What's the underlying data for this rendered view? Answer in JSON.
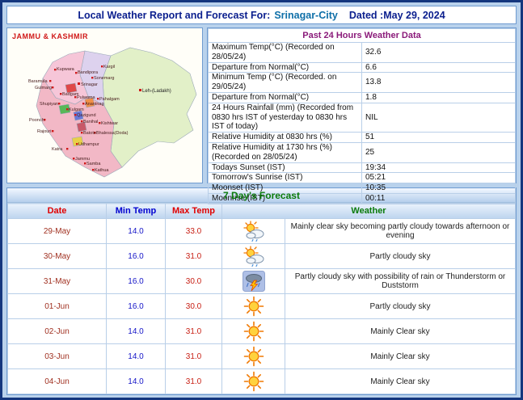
{
  "header": {
    "title": "Local Weather Report and Forecast For:",
    "city": "Srinagar-City",
    "dated": "Dated :May 29, 2024"
  },
  "map": {
    "region_title": "JAMMU & KASHMIR",
    "labels": [
      "Kupwara",
      "Bandipora",
      "Sonemarg",
      "Kargil",
      "Leh-(Ladakh)",
      "Baramula",
      "Srinagar",
      "Gulmarg",
      "Badgam",
      "Pulwama",
      "Shupiyan",
      "Kulgam",
      "Anantnag",
      "Pahalgam",
      "Qazigund",
      "Banihal",
      "Kishtwar",
      "Bhalessa(Doda)",
      "Batote",
      "Udhampur",
      "Katra",
      "Rajouri",
      "Poonch",
      "Jammu",
      "Samba",
      "Kathua"
    ]
  },
  "past24": {
    "title": "Past 24 Hours Weather Data",
    "rows": [
      {
        "label": "Maximum Temp(°C) (Recorded on 28/05/24)",
        "value": "32.6"
      },
      {
        "label": "Departure from Normal(°C)",
        "value": "6.6"
      },
      {
        "label": "Minimum Temp (°C) (Recorded. on 29/05/24)",
        "value": "13.8"
      },
      {
        "label": "Departure from Normal(°C)",
        "value": "1.8"
      },
      {
        "label": "24 Hours Rainfall (mm) (Recorded from 0830 hrs IST of yesterday to 0830 hrs IST of today)",
        "value": "NIL"
      },
      {
        "label": "Relative Humidity at 0830 hrs (%)",
        "value": "51"
      },
      {
        "label": "Relative Humidity at 1730 hrs (%) (Recorded on 28/05/24)",
        "value": "25"
      },
      {
        "label": "Todays Sunset (IST)",
        "value": "19:34"
      },
      {
        "label": "Tomorrow's Sunrise (IST)",
        "value": "05:21"
      },
      {
        "label": "Moonset (IST)",
        "value": "10:35"
      },
      {
        "label": "Moonrise (IST)",
        "value": "00:11"
      }
    ]
  },
  "forecast": {
    "title": "7 Day's Forecast",
    "columns": {
      "date": "Date",
      "min": "Min Temp",
      "max": "Max Temp",
      "weather": "Weather"
    },
    "rows": [
      {
        "date": "29-May",
        "min": "14.0",
        "max": "33.0",
        "icon": "sun-cloud",
        "desc": "Mainly clear sky becoming partly cloudy towards afternoon or evening"
      },
      {
        "date": "30-May",
        "min": "16.0",
        "max": "31.0",
        "icon": "sun-cloud",
        "desc": "Partly cloudy sky"
      },
      {
        "date": "31-May",
        "min": "16.0",
        "max": "30.0",
        "icon": "thunderstorm",
        "desc": "Partly cloudy sky with possibility of rain or Thunderstorm or Duststorm"
      },
      {
        "date": "01-Jun",
        "min": "16.0",
        "max": "30.0",
        "icon": "sun",
        "desc": "Partly cloudy sky"
      },
      {
        "date": "02-Jun",
        "min": "14.0",
        "max": "31.0",
        "icon": "sun",
        "desc": "Mainly Clear sky"
      },
      {
        "date": "03-Jun",
        "min": "14.0",
        "max": "31.0",
        "icon": "sun",
        "desc": "Mainly Clear sky"
      },
      {
        "date": "04-Jun",
        "min": "14.0",
        "max": "31.0",
        "icon": "sun",
        "desc": "Mainly Clear sky"
      }
    ]
  },
  "colors": {
    "page_background": "#b9d2ec",
    "outer_border": "#14367e",
    "header_text": "#0b1f8e",
    "past24_title": "#8b1b7a",
    "forecast_title_green": "#0a7a0a",
    "date_red": "#e00000",
    "min_blue": "#1515c8",
    "max_red": "#c82015",
    "map_region_title_red": "#d01818"
  }
}
